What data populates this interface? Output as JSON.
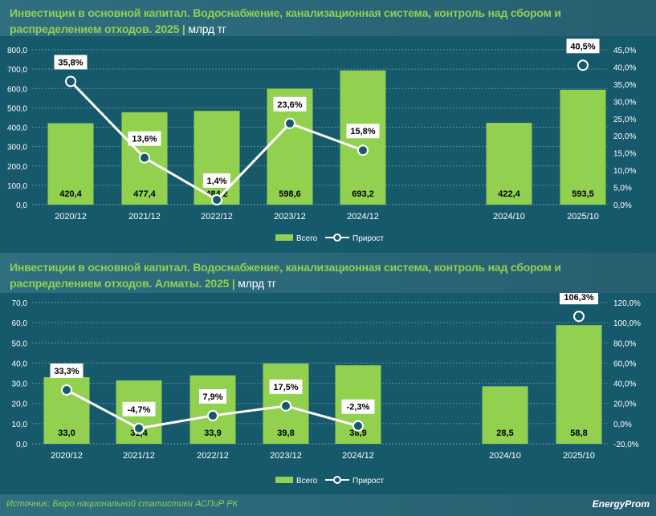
{
  "colors": {
    "bar": "#92d050",
    "line": "#ffffff",
    "background": "#16596a",
    "title": "#92d050"
  },
  "chart_data": [
    {
      "type": "bar+line",
      "title": "Инвестиции в основной капитал. Водоснабжение, канализационная система, контроль над сбором и распределением отходов. 2025",
      "unit": "млрд тг",
      "categories": [
        "2020/12",
        "2021/12",
        "2022/12",
        "2023/12",
        "2024/12",
        "2024/10",
        "2025/10"
      ],
      "yticks": [
        "0,0",
        "100,0",
        "200,0",
        "300,0",
        "400,0",
        "500,0",
        "600,0",
        "700,0",
        "800,0"
      ],
      "ylim": [
        0,
        800
      ],
      "y2ticks": [
        "0,0%",
        "5,0%",
        "10,0%",
        "15,0%",
        "20,0%",
        "25,0%",
        "30,0%",
        "35,0%",
        "40,0%",
        "45,0%"
      ],
      "y2lim": [
        0,
        45
      ],
      "series": [
        {
          "name": "Всего",
          "type": "bar",
          "values": [
            420.4,
            477.4,
            484.2,
            598.6,
            693.2,
            422.4,
            593.5
          ],
          "labels": [
            "420,4",
            "477,4",
            "484,2",
            "598,6",
            "693,2",
            "422,4",
            "593,5"
          ]
        },
        {
          "name": "Прирост",
          "type": "line",
          "values": [
            35.8,
            13.6,
            1.4,
            23.6,
            15.8,
            null,
            40.5
          ],
          "labels": [
            "35,8%",
            "13,6%",
            "1,4%",
            "23,6%",
            "15,8%",
            "",
            "40,5%"
          ]
        }
      ],
      "legend": "bottom",
      "grid": true
    },
    {
      "type": "bar+line",
      "title": "Инвестиции в основной капитал. Водоснабжение, канализационная система, контроль над сбором и распределением отходов. Алматы. 2025",
      "unit": "млрд тг",
      "categories": [
        "2020/12",
        "2021/12",
        "2022/12",
        "2023/12",
        "2024/12",
        "2024/10",
        "2025/10"
      ],
      "yticks": [
        "0,0",
        "10,0",
        "20,0",
        "30,0",
        "40,0",
        "50,0",
        "60,0",
        "70,0"
      ],
      "ylim": [
        0,
        70
      ],
      "y2ticks": [
        "-20,0%",
        "0,0%",
        "20,0%",
        "40,0%",
        "60,0%",
        "80,0%",
        "100,0%",
        "120,0%"
      ],
      "y2lim": [
        -20,
        120
      ],
      "series": [
        {
          "name": "Всего",
          "type": "bar",
          "values": [
            33.0,
            31.4,
            33.9,
            39.8,
            38.9,
            28.5,
            58.8
          ],
          "labels": [
            "33,0",
            "31,4",
            "33,9",
            "39,8",
            "38,9",
            "28,5",
            "58,8"
          ]
        },
        {
          "name": "Прирост",
          "type": "line",
          "values": [
            33.3,
            -4.7,
            7.9,
            17.5,
            -2.3,
            null,
            106.3
          ],
          "labels": [
            "33,3%",
            "-4,7%",
            "7,9%",
            "17,5%",
            "-2,3%",
            "",
            "106,3%"
          ]
        }
      ],
      "legend": "bottom",
      "grid": true
    }
  ],
  "footer": {
    "source": "Источник: Бюро национальной статистики АСПиР РК",
    "logo": "EnergyProm"
  }
}
